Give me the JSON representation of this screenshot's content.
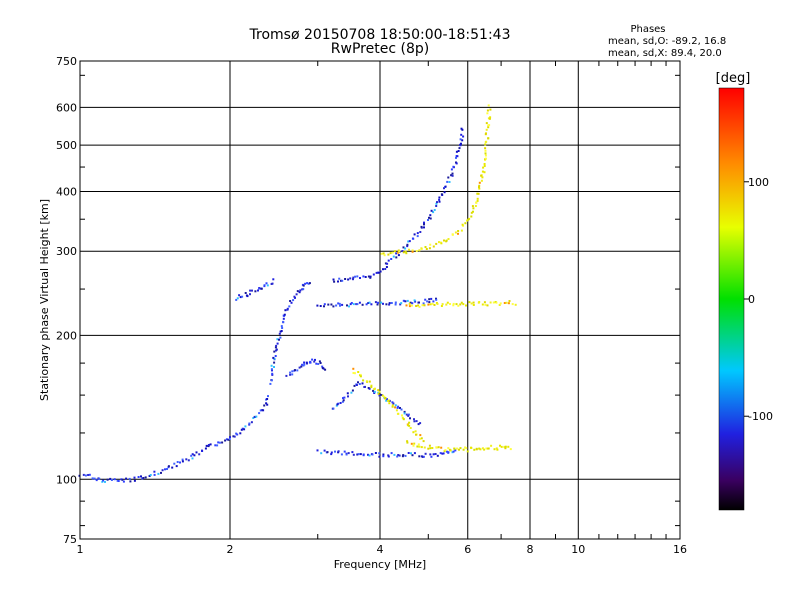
{
  "chart_data": {
    "type": "scatter",
    "title": "Tromsø 20150708 18:50:00-18:51:43",
    "subtitle": "RwPretec (8p)",
    "xlabel": "Frequency [MHz]",
    "ylabel": "Stationary phase Virtual Height [km]",
    "x_scale": "log2",
    "y_scale": "log",
    "xlim": [
      1,
      16
    ],
    "ylim": [
      75,
      750
    ],
    "x_ticks": [
      "1",
      "2",
      "4",
      "6",
      "8",
      "10",
      "16"
    ],
    "x_tick_values": [
      1,
      2,
      4,
      6,
      8,
      10,
      16
    ],
    "y_ticks": [
      "75",
      "100",
      "200",
      "300",
      "400",
      "500",
      "600",
      "750"
    ],
    "y_tick_values": [
      75,
      100,
      200,
      300,
      400,
      500,
      600,
      750
    ],
    "grid": true,
    "phase_box": {
      "title": "Phases",
      "line1": "mean, sd,O: -89.2, 16.8",
      "line2": "mean, sd,X:  89.4, 20.0"
    },
    "colorbar": {
      "label": "[deg]",
      "ticks": [
        "100",
        "0",
        "-100"
      ],
      "tick_values": [
        100,
        0,
        -100
      ],
      "range": [
        -180,
        180
      ]
    },
    "series": [
      {
        "mode": "O",
        "color": "#2020e0",
        "segments": [
          {
            "x": [
              1.0,
              1.1,
              1.25,
              1.4,
              1.55,
              1.7,
              1.8,
              1.9,
              2.0,
              2.1,
              2.2,
              2.3,
              2.4
            ],
            "y": [
              103,
              100,
              100,
              103,
              108,
              113,
              118,
              120,
              123,
              127,
              133,
              140,
              150
            ]
          },
          {
            "x": [
              2.4,
              2.45,
              2.5,
              2.55,
              2.6,
              2.7,
              2.8,
              2.9
            ],
            "y": [
              160,
              185,
              200,
              215,
              230,
              245,
              255,
              260
            ]
          },
          {
            "x": [
              2.05,
              2.15,
              2.25,
              2.35,
              2.45
            ],
            "y": [
              240,
              245,
              250,
              255,
              262
            ]
          },
          {
            "x": [
              3.0,
              3.2,
              3.5,
              3.8,
              4.1,
              4.4,
              4.7,
              5.0,
              5.2
            ],
            "y": [
              232,
              233,
              233,
              234,
              234,
              235,
              236,
              237,
              238
            ]
          },
          {
            "x": [
              3.0,
              3.3,
              3.6,
              3.9,
              4.2,
              4.5,
              4.8,
              5.1,
              5.4,
              5.7
            ],
            "y": [
              115,
              114,
              114,
              113,
              113,
              113,
              113,
              113,
              114,
              115
            ]
          },
          {
            "x": [
              3.2,
              3.5,
              3.8,
              4.0,
              4.2,
              4.5,
              4.8,
              5.0,
              5.2,
              5.4,
              5.6,
              5.75,
              5.85
            ],
            "y": [
              262,
              264,
              267,
              275,
              290,
              310,
              335,
              355,
              380,
              410,
              450,
              500,
              550
            ]
          },
          {
            "x": [
              2.6,
              2.7,
              2.8,
              2.9,
              3.0,
              3.1
            ],
            "y": [
              165,
              170,
              175,
              178,
              176,
              170
            ]
          },
          {
            "x": [
              3.2,
              3.4,
              3.6,
              3.8,
              4.0,
              4.2,
              4.4,
              4.6,
              4.8
            ],
            "y": [
              140,
              150,
              160,
              155,
              150,
              145,
              140,
              135,
              130
            ]
          }
        ]
      },
      {
        "mode": "X",
        "color": "#e8e800",
        "segments": [
          {
            "x": [
              3.5,
              3.7,
              3.9,
              4.1,
              4.3,
              4.5,
              4.7,
              4.9
            ],
            "y": [
              170,
              163,
              155,
              148,
              140,
              132,
              125,
              120
            ]
          },
          {
            "x": [
              4.5,
              4.8,
              5.1,
              5.4,
              5.7,
              6.0,
              6.3,
              6.6,
              7.0,
              7.3
            ],
            "y": [
              120,
              118,
              117,
              116,
              116,
              116,
              116,
              117,
              117,
              117
            ]
          },
          {
            "x": [
              4.0,
              4.3,
              4.6,
              4.9,
              5.2,
              5.5,
              5.8,
              6.1,
              6.3,
              6.45,
              6.55,
              6.6
            ],
            "y": [
              297,
              300,
              302,
              306,
              312,
              322,
              335,
              360,
              400,
              460,
              540,
              610
            ]
          },
          {
            "x": [
              4.5,
              5.0,
              5.5,
              6.0,
              6.5,
              7.0,
              7.5
            ],
            "y": [
              232,
              233,
              233,
              234,
              234,
              235,
              235
            ]
          }
        ]
      }
    ]
  }
}
